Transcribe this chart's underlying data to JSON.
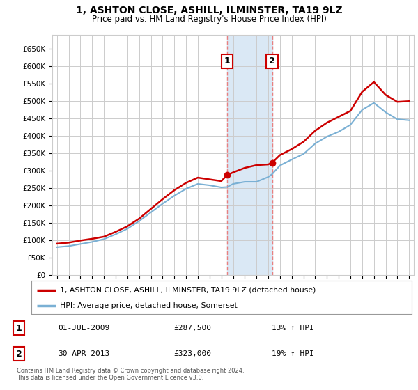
{
  "title": "1, ASHTON CLOSE, ASHILL, ILMINSTER, TA19 9LZ",
  "subtitle": "Price paid vs. HM Land Registry's House Price Index (HPI)",
  "ylabel_ticks": [
    "£0",
    "£50K",
    "£100K",
    "£150K",
    "£200K",
    "£250K",
    "£300K",
    "£350K",
    "£400K",
    "£450K",
    "£500K",
    "£550K",
    "£600K",
    "£650K"
  ],
  "ytick_vals": [
    0,
    50000,
    100000,
    150000,
    200000,
    250000,
    300000,
    350000,
    400000,
    450000,
    500000,
    550000,
    600000,
    650000
  ],
  "ylim": [
    0,
    690000
  ],
  "xlim_start": 1994.6,
  "xlim_end": 2025.4,
  "hpi_color": "#7ab0d4",
  "price_color": "#cc0000",
  "grid_color": "#cccccc",
  "background_color": "#ffffff",
  "transaction1": {
    "date": "01-JUL-2009",
    "price": 287500,
    "label": "1",
    "year": 2009.5,
    "pct": "13%"
  },
  "transaction2": {
    "date": "30-APR-2013",
    "price": 323000,
    "label": "2",
    "year": 2013.33,
    "pct": "19%"
  },
  "shade_color": "#dae8f5",
  "dashed_color": "#e88080",
  "legend_house_label": "1, ASHTON CLOSE, ASHILL, ILMINSTER, TA19 9LZ (detached house)",
  "legend_hpi_label": "HPI: Average price, detached house, Somerset",
  "footnote": "Contains HM Land Registry data © Crown copyright and database right 2024.\nThis data is licensed under the Open Government Licence v3.0.",
  "years": [
    1995,
    1996,
    1997,
    1998,
    1999,
    2000,
    2001,
    2002,
    2003,
    2004,
    2005,
    2006,
    2007,
    2008,
    2009,
    2009.5,
    2010,
    2011,
    2012,
    2013,
    2013.33,
    2014,
    2015,
    2016,
    2017,
    2018,
    2019,
    2020,
    2021,
    2022,
    2023,
    2024,
    2025
  ],
  "hpi_values": [
    80000,
    83000,
    89000,
    95000,
    103000,
    117000,
    133000,
    155000,
    180000,
    205000,
    228000,
    248000,
    262000,
    258000,
    252000,
    253000,
    262000,
    268000,
    268000,
    282000,
    290000,
    315000,
    332000,
    348000,
    378000,
    398000,
    412000,
    432000,
    475000,
    495000,
    468000,
    448000,
    445000
  ],
  "price_values": [
    90000,
    93000,
    99000,
    104000,
    110000,
    124000,
    140000,
    162000,
    190000,
    218000,
    244000,
    265000,
    280000,
    275000,
    270000,
    287500,
    295000,
    308000,
    316000,
    318000,
    323000,
    345000,
    362000,
    383000,
    415000,
    438000,
    455000,
    472000,
    527000,
    555000,
    518000,
    498000,
    500000
  ]
}
